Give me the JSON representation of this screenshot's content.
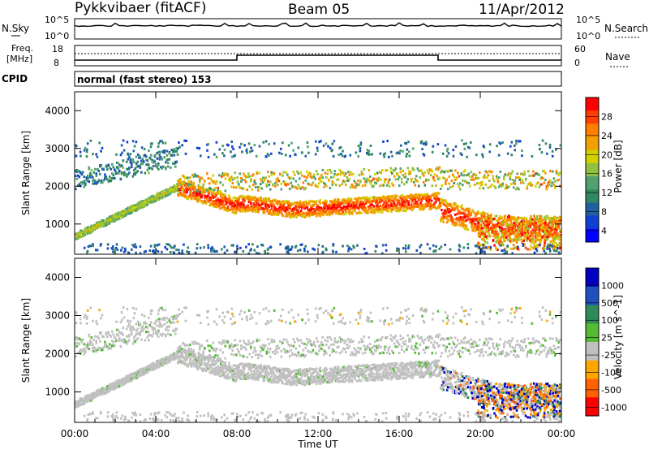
{
  "header": {
    "station": "Pykkvibaer (fitACF)",
    "beam": "Beam 05",
    "date": "11/Apr/2012"
  },
  "panels": {
    "nsky_label": "N.Sky",
    "nsearch_label": "N.Search",
    "freq_label_top": "Freq.",
    "freq_label_bottom": "[MHz]",
    "nave_label": "Nave",
    "cpid_label": "CPID",
    "cpid_text": "normal (fast stereo) 153",
    "nsky_ticks": [
      "10^5",
      "10^0"
    ],
    "nsearch_ticks": [
      "10^5",
      "10^0"
    ],
    "freq_ticks": [
      "18",
      "8"
    ],
    "nave_ticks": [
      "60",
      "0"
    ]
  },
  "colorbars": {
    "power": {
      "label": "Power [dB]",
      "ticks": [
        "28",
        "24",
        "20",
        "16",
        "12",
        "8",
        "4"
      ],
      "colors": [
        "#ff0000",
        "#ff4000",
        "#ff8000",
        "#f0a000",
        "#d0d000",
        "#90c040",
        "#50a070",
        "#308860",
        "#2060a0",
        "#1040d0",
        "#0000ff"
      ]
    },
    "velocity": {
      "label": "Velocity [m s^-1]",
      "ticks": [
        "1000",
        "500",
        "100",
        "25",
        "-25",
        "-100",
        "-500",
        "-1000"
      ],
      "colors": [
        "#0000c0",
        "#2050c0",
        "#2e8b57",
        "#55bb33",
        "#c0c0c0",
        "#ffa500",
        "#ff6000",
        "#ff0000"
      ]
    }
  },
  "chart_data": [
    {
      "type": "heatmap",
      "name": "power",
      "title": "",
      "ylabel": "Slant Range [km]",
      "xlim": [
        "00:00",
        "24:00"
      ],
      "ylim": [
        200,
        4500
      ],
      "yticks": [
        "4000",
        "3000",
        "2000",
        "1000"
      ],
      "zlabel": "Power [dB]",
      "zlim": [
        0,
        30
      ]
    },
    {
      "type": "heatmap",
      "name": "velocity",
      "title": "",
      "ylabel": "Slant Range [km]",
      "xlabel": "Time UT",
      "xlim": [
        "00:00",
        "24:00"
      ],
      "ylim": [
        200,
        4500
      ],
      "xticks": [
        "00:00",
        "04:00",
        "08:00",
        "12:00",
        "16:00",
        "20:00",
        "00:00"
      ],
      "yticks": [
        "4000",
        "3000",
        "2000",
        "1000"
      ],
      "zlabel": "Velocity [m s^-1]",
      "zlim": [
        -1000,
        1000
      ]
    }
  ]
}
